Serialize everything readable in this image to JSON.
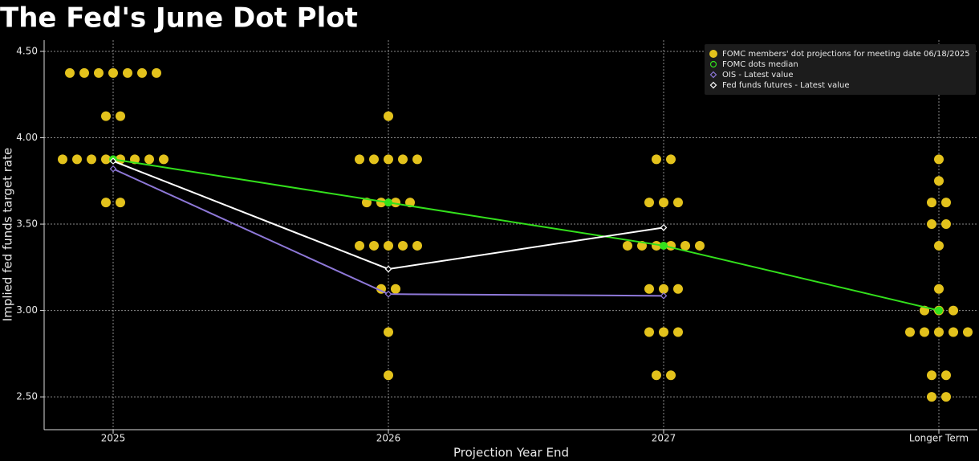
{
  "chart_data": {
    "type": "dotplot",
    "title": "The Fed's June Dot Plot",
    "x_label": "Projection Year End",
    "y_label": "Implied fed funds target rate",
    "categories": [
      "2025",
      "2026",
      "2027",
      "Longer Term"
    ],
    "ylim": [
      2.31,
      4.565
    ],
    "yticks": [
      {
        "value": 2.5,
        "label": "2.50"
      },
      {
        "value": 3.0,
        "label": "3.00"
      },
      {
        "value": 3.5,
        "label": "3.50"
      },
      {
        "value": 4.0,
        "label": "4.00"
      },
      {
        "value": 4.5,
        "label": "4.50"
      }
    ],
    "grid": true,
    "legend": "top-right",
    "series": [
      {
        "name": "FOMC members' dot projections for meeting date 06/18/2025",
        "style": "dots",
        "color": "#e3c21c",
        "values": [
          [
            4.375,
            4.375,
            4.375,
            4.375,
            4.375,
            4.375,
            4.375,
            4.125,
            4.125,
            3.875,
            3.875,
            3.875,
            3.875,
            3.875,
            3.875,
            3.875,
            3.875,
            3.625,
            3.625
          ],
          [
            4.125,
            3.875,
            3.875,
            3.875,
            3.875,
            3.875,
            3.625,
            3.625,
            3.625,
            3.625,
            3.375,
            3.375,
            3.375,
            3.375,
            3.375,
            3.125,
            3.125,
            2.875,
            2.625
          ],
          [
            3.875,
            3.875,
            3.625,
            3.625,
            3.625,
            3.375,
            3.375,
            3.375,
            3.375,
            3.375,
            3.375,
            3.125,
            3.125,
            3.125,
            2.875,
            2.875,
            2.875,
            2.625,
            2.625
          ],
          [
            3.875,
            3.75,
            3.625,
            3.625,
            3.5,
            3.5,
            3.375,
            3.125,
            3.0,
            3.0,
            3.0,
            2.875,
            2.875,
            2.875,
            2.875,
            2.875,
            2.625,
            2.625,
            2.5,
            2.5
          ]
        ]
      },
      {
        "name": "FOMC dots median",
        "style": "line",
        "marker": "circle",
        "color": "#33e01c",
        "values": [
          3.875,
          3.625,
          3.375,
          3.0
        ]
      },
      {
        "name": "OIS - Latest value",
        "style": "line",
        "marker": "diamond",
        "color": "#8e78d8",
        "values": [
          3.82,
          3.095,
          3.085,
          null
        ]
      },
      {
        "name": "Fed funds futures - Latest value",
        "style": "line",
        "marker": "diamond",
        "color": "#ffffff",
        "values": [
          3.865,
          3.24,
          3.48,
          null
        ]
      }
    ]
  }
}
